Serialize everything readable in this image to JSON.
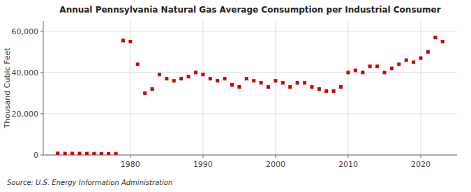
{
  "chart_data": {
    "type": "scatter",
    "title": "Annual Pennsylvania Natural Gas Average Consumption per Industrial Consumer",
    "ylabel": "Thousand Cubic Feet",
    "source": "Source: U.S. Energy Information Administration",
    "x": [
      1970,
      1971,
      1972,
      1973,
      1974,
      1975,
      1976,
      1977,
      1978,
      1979,
      1980,
      1981,
      1982,
      1983,
      1984,
      1985,
      1986,
      1987,
      1988,
      1989,
      1990,
      1991,
      1992,
      1993,
      1994,
      1995,
      1996,
      1997,
      1998,
      1999,
      2000,
      2001,
      2002,
      2003,
      2004,
      2005,
      2006,
      2007,
      2008,
      2009,
      2010,
      2011,
      2012,
      2013,
      2014,
      2015,
      2016,
      2017,
      2018,
      2019,
      2020,
      2021,
      2022,
      2023
    ],
    "values": [
      800,
      700,
      750,
      700,
      650,
      600,
      600,
      550,
      600,
      55500,
      55000,
      44000,
      30000,
      32000,
      39000,
      37000,
      36000,
      37000,
      38000,
      40000,
      39000,
      37000,
      36000,
      37000,
      34000,
      33000,
      37000,
      36000,
      35000,
      33000,
      36000,
      35000,
      33000,
      35000,
      35000,
      33000,
      32000,
      31000,
      31000,
      33000,
      40000,
      41000,
      40000,
      43000,
      43000,
      40000,
      42000,
      44000,
      46000,
      45000,
      47000,
      50000,
      57000,
      55000
    ],
    "color": "#cc0000",
    "marker": "square",
    "xlim": [
      1968,
      2025
    ],
    "ylim": [
      0,
      65000
    ],
    "xticks": [
      1980,
      1990,
      2000,
      2010,
      2020
    ],
    "yticks": [
      0,
      {
        "value": 20000,
        "label": "20,000"
      },
      {
        "value": 40000,
        "label": "40,000"
      },
      {
        "value": 60000,
        "label": "60,000"
      }
    ],
    "grid": true
  }
}
